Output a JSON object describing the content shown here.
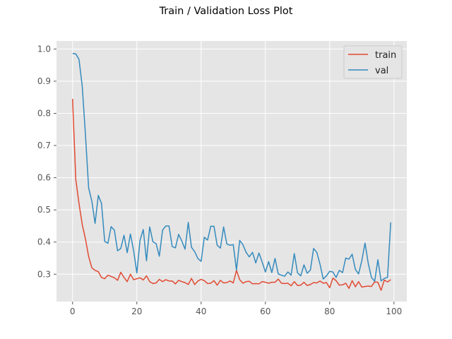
{
  "chart_data": {
    "type": "line",
    "title": "Train / Validation Loss Plot",
    "xlabel": "",
    "ylabel": "",
    "xlim": [
      -5,
      104
    ],
    "ylim": [
      0.215,
      1.025
    ],
    "xticks": [
      0,
      20,
      40,
      60,
      80,
      100
    ],
    "yticks": [
      0.3,
      0.4,
      0.5,
      0.6,
      0.7,
      0.8,
      0.9,
      1.0
    ],
    "ytick_labels": [
      "0.3",
      "0.4",
      "0.5",
      "0.6",
      "0.7",
      "0.8",
      "0.9",
      "1.0"
    ],
    "grid": true,
    "legend_position": "top-right",
    "x": [
      0,
      1,
      2,
      3,
      4,
      5,
      6,
      7,
      8,
      9,
      10,
      11,
      12,
      13,
      14,
      15,
      16,
      17,
      18,
      19,
      20,
      21,
      22,
      23,
      24,
      25,
      26,
      27,
      28,
      29,
      30,
      31,
      32,
      33,
      34,
      35,
      36,
      37,
      38,
      39,
      40,
      41,
      42,
      43,
      44,
      45,
      46,
      47,
      48,
      49,
      50,
      51,
      52,
      53,
      54,
      55,
      56,
      57,
      58,
      59,
      60,
      61,
      62,
      63,
      64,
      65,
      66,
      67,
      68,
      69,
      70,
      71,
      72,
      73,
      74,
      75,
      76,
      77,
      78,
      79,
      80,
      81,
      82,
      83,
      84,
      85,
      86,
      87,
      88,
      89,
      90,
      91,
      92,
      93,
      94,
      95,
      96,
      97,
      98,
      99
    ],
    "series": [
      {
        "name": "train",
        "color": "#E24A33",
        "values": [
          0.845,
          0.595,
          0.52,
          0.455,
          0.41,
          0.355,
          0.32,
          0.312,
          0.308,
          0.29,
          0.286,
          0.297,
          0.293,
          0.289,
          0.281,
          0.306,
          0.29,
          0.277,
          0.3,
          0.283,
          0.286,
          0.289,
          0.282,
          0.295,
          0.277,
          0.271,
          0.273,
          0.284,
          0.277,
          0.283,
          0.279,
          0.279,
          0.27,
          0.281,
          0.277,
          0.274,
          0.268,
          0.287,
          0.268,
          0.279,
          0.284,
          0.28,
          0.271,
          0.272,
          0.28,
          0.266,
          0.281,
          0.273,
          0.274,
          0.279,
          0.273,
          0.312,
          0.283,
          0.272,
          0.277,
          0.278,
          0.27,
          0.271,
          0.27,
          0.277,
          0.275,
          0.272,
          0.275,
          0.275,
          0.285,
          0.272,
          0.271,
          0.272,
          0.264,
          0.277,
          0.265,
          0.266,
          0.275,
          0.265,
          0.268,
          0.274,
          0.273,
          0.279,
          0.272,
          0.274,
          0.258,
          0.288,
          0.28,
          0.266,
          0.267,
          0.272,
          0.256,
          0.28,
          0.261,
          0.277,
          0.26,
          0.262,
          0.263,
          0.262,
          0.276,
          0.275,
          0.25,
          0.282,
          0.276,
          0.283
        ]
      },
      {
        "name": "val",
        "color": "#348ABD",
        "values": [
          0.986,
          0.985,
          0.968,
          0.885,
          0.735,
          0.568,
          0.527,
          0.458,
          0.545,
          0.52,
          0.402,
          0.396,
          0.448,
          0.437,
          0.373,
          0.38,
          0.421,
          0.367,
          0.425,
          0.373,
          0.304,
          0.406,
          0.439,
          0.342,
          0.447,
          0.401,
          0.395,
          0.356,
          0.437,
          0.45,
          0.45,
          0.386,
          0.382,
          0.424,
          0.403,
          0.378,
          0.461,
          0.384,
          0.37,
          0.349,
          0.34,
          0.415,
          0.406,
          0.449,
          0.449,
          0.39,
          0.381,
          0.447,
          0.394,
          0.39,
          0.392,
          0.313,
          0.405,
          0.392,
          0.368,
          0.354,
          0.368,
          0.335,
          0.366,
          0.338,
          0.307,
          0.339,
          0.305,
          0.349,
          0.301,
          0.297,
          0.294,
          0.307,
          0.297,
          0.364,
          0.304,
          0.295,
          0.329,
          0.303,
          0.313,
          0.38,
          0.368,
          0.331,
          0.285,
          0.295,
          0.309,
          0.307,
          0.29,
          0.312,
          0.305,
          0.35,
          0.347,
          0.362,
          0.315,
          0.301,
          0.342,
          0.397,
          0.334,
          0.29,
          0.278,
          0.345,
          0.279,
          0.287,
          0.29,
          0.461
        ]
      }
    ]
  }
}
